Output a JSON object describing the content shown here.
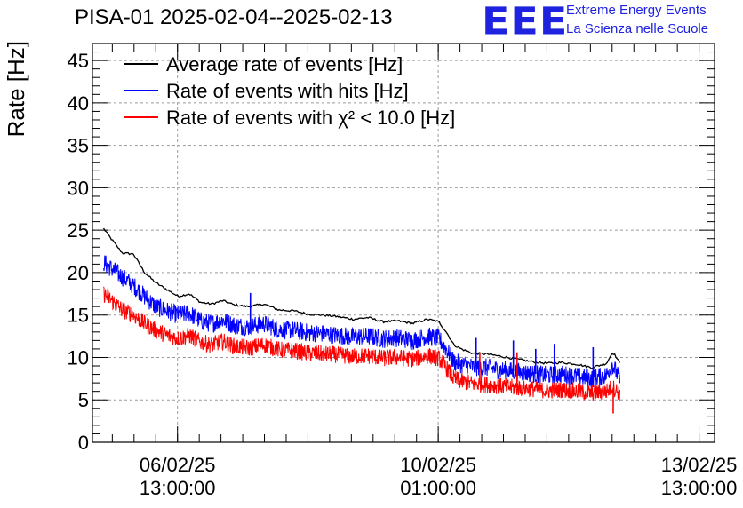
{
  "header": {
    "title": "PISA-01 2025-02-04--2025-02-13",
    "logo_text": "EEE",
    "logo_line1": "Extreme Energy Events",
    "logo_line2": "La Scienza nelle Scuole"
  },
  "colors": {
    "black": "#000000",
    "blue": "#0000ff",
    "red": "#ff0000",
    "logo": "#1f23e0",
    "grid": "#9a9a9a"
  },
  "chart_data": {
    "type": "line",
    "title": "PISA-01 2025-02-04--2025-02-13",
    "ylabel": "Rate [Hz]",
    "xlabel": "",
    "ylim": [
      0,
      47
    ],
    "yticks": [
      0,
      5,
      10,
      15,
      20,
      25,
      30,
      35,
      40,
      45
    ],
    "x_unit": "days since 2025-02-04 00:00",
    "xlim": [
      1.4,
      9.75
    ],
    "xticks": [
      {
        "x": 2.5417,
        "line1": "06/02/25",
        "line2": "13:00:00"
      },
      {
        "x": 6.0417,
        "line1": "10/02/25",
        "line2": "01:00:00"
      },
      {
        "x": 9.5417,
        "line1": "13/02/25",
        "line2": "13:00:00"
      }
    ],
    "grid": true,
    "legend_position": "top-left",
    "series": [
      {
        "name": "Average rate of events [Hz]",
        "color": "#000000",
        "noise": 0,
        "x": [
          1.55,
          1.65,
          1.8,
          1.95,
          2.1,
          2.25,
          2.4,
          2.55,
          2.7,
          2.85,
          3.0,
          3.15,
          3.3,
          3.5,
          3.7,
          3.9,
          4.1,
          4.3,
          4.5,
          4.7,
          4.9,
          5.1,
          5.3,
          5.5,
          5.7,
          5.9,
          6.05,
          6.15,
          6.25,
          6.35,
          6.5,
          6.7,
          6.9,
          7.1,
          7.3,
          7.5,
          7.7,
          7.9,
          8.1,
          8.3,
          8.38,
          8.42,
          8.48
        ],
        "y": [
          25.2,
          24.0,
          22.3,
          22.2,
          20.0,
          18.8,
          18.0,
          17.2,
          17.5,
          16.5,
          16.3,
          16.7,
          16.2,
          16.0,
          16.3,
          15.6,
          15.5,
          15.1,
          15.0,
          14.8,
          14.5,
          14.7,
          14.2,
          14.3,
          14.0,
          14.5,
          14.2,
          13.0,
          11.5,
          11.0,
          10.5,
          10.4,
          10.1,
          9.8,
          9.5,
          9.3,
          9.4,
          9.2,
          8.8,
          9.3,
          10.6,
          10.2,
          9.3
        ]
      },
      {
        "name": "Rate of events with hits [Hz]",
        "color": "#0000ff",
        "noise": 1.1,
        "x": [
          1.55,
          1.65,
          1.8,
          1.95,
          2.1,
          2.25,
          2.4,
          2.55,
          2.7,
          2.85,
          3.0,
          3.15,
          3.3,
          3.5,
          3.7,
          3.9,
          4.1,
          4.3,
          4.5,
          4.7,
          4.9,
          5.1,
          5.3,
          5.5,
          5.7,
          5.9,
          6.05,
          6.15,
          6.25,
          6.35,
          6.5,
          6.7,
          6.9,
          7.1,
          7.3,
          7.5,
          7.7,
          7.9,
          8.1,
          8.3,
          8.38,
          8.42,
          8.48
        ],
        "y": [
          21.2,
          20.5,
          19.5,
          18.5,
          17.2,
          16.0,
          15.5,
          15.0,
          15.2,
          14.3,
          14.0,
          14.4,
          13.8,
          13.6,
          14.0,
          13.3,
          13.2,
          12.9,
          12.8,
          12.6,
          12.4,
          12.5,
          12.2,
          12.3,
          12.0,
          12.5,
          12.2,
          11.0,
          9.5,
          9.2,
          8.9,
          8.8,
          8.5,
          8.3,
          8.1,
          7.9,
          8.0,
          7.8,
          7.5,
          7.9,
          9.2,
          8.4,
          7.5
        ]
      },
      {
        "name": "Rate of events with χ² < 10.0 [Hz]",
        "color": "#ff0000",
        "noise": 1.0,
        "x": [
          1.55,
          1.65,
          1.8,
          1.95,
          2.1,
          2.25,
          2.4,
          2.55,
          2.7,
          2.85,
          3.0,
          3.15,
          3.3,
          3.5,
          3.7,
          3.9,
          4.1,
          4.3,
          4.5,
          4.7,
          4.9,
          5.1,
          5.3,
          5.5,
          5.7,
          5.9,
          6.05,
          6.15,
          6.25,
          6.35,
          6.5,
          6.7,
          6.9,
          7.1,
          7.3,
          7.5,
          7.7,
          7.9,
          8.1,
          8.3,
          8.38,
          8.42,
          8.48
        ],
        "y": [
          17.5,
          16.8,
          15.6,
          15.0,
          14.0,
          13.2,
          12.6,
          12.2,
          12.6,
          11.8,
          11.5,
          11.9,
          11.3,
          11.1,
          11.5,
          10.9,
          10.8,
          10.5,
          10.4,
          10.3,
          10.1,
          10.2,
          9.9,
          10.0,
          9.8,
          10.2,
          9.9,
          8.8,
          7.5,
          7.2,
          6.9,
          6.8,
          6.6,
          6.4,
          6.3,
          6.1,
          6.2,
          6.0,
          5.8,
          6.0,
          6.5,
          6.2,
          5.8
        ]
      }
    ],
    "spikes": [
      {
        "series": 1,
        "x": 3.52,
        "y": 17.6
      },
      {
        "series": 1,
        "x": 6.55,
        "y": 12.3
      },
      {
        "series": 1,
        "x": 7.05,
        "y": 12.0
      },
      {
        "series": 1,
        "x": 7.35,
        "y": 11.0
      },
      {
        "series": 1,
        "x": 7.6,
        "y": 11.6
      },
      {
        "series": 1,
        "x": 8.12,
        "y": 11.2
      },
      {
        "series": 2,
        "x": 6.6,
        "y": 10.5
      },
      {
        "series": 2,
        "x": 7.1,
        "y": 10.6
      },
      {
        "series": 2,
        "x": 8.39,
        "y": 3.4
      }
    ]
  }
}
